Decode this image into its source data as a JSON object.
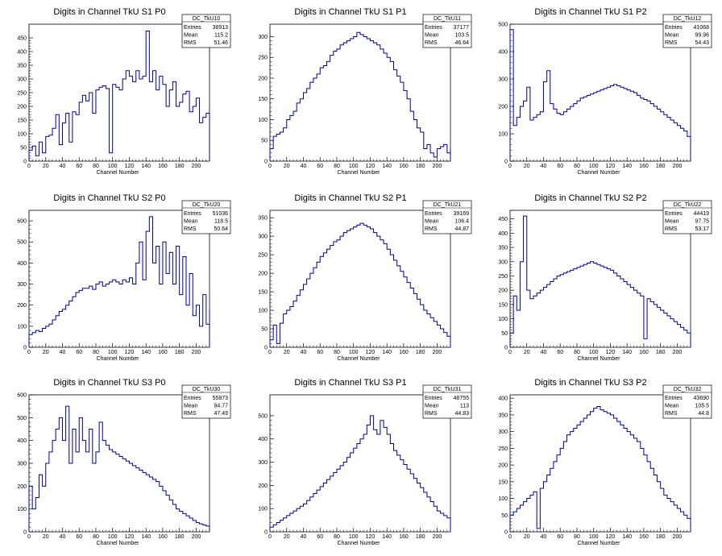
{
  "colors": {
    "line": "#000099",
    "axis": "#000000",
    "background": "#ffffff"
  },
  "chart_data": [
    {
      "type": "histogram",
      "title": "Digits in Channel TkU S1 P0",
      "xlabel": "Channel Number",
      "ylabel": "",
      "xlim": [
        0,
        216
      ],
      "ylim": [
        0,
        500
      ],
      "yticks": [
        0,
        50,
        100,
        150,
        200,
        250,
        300,
        350,
        400,
        450
      ],
      "stats": {
        "name": "DC_TkU10",
        "rows": [
          [
            "Entries",
            "38913"
          ],
          [
            "Mean",
            "115.2"
          ],
          [
            "RMS",
            "51.46"
          ]
        ]
      },
      "bins_step": 4,
      "values": [
        40,
        55,
        20,
        70,
        30,
        90,
        95,
        120,
        170,
        60,
        140,
        175,
        70,
        180,
        170,
        215,
        240,
        220,
        250,
        175,
        260,
        270,
        275,
        265,
        30,
        280,
        270,
        260,
        300,
        330,
        310,
        290,
        330,
        300,
        310,
        475,
        290,
        330,
        260,
        310,
        280,
        200,
        260,
        290,
        200,
        215,
        245,
        255,
        180,
        200,
        230,
        140,
        160,
        175,
        110
      ]
    },
    {
      "type": "histogram",
      "title": "Digits in Channel TkU S1 P1",
      "xlabel": "Channel Number",
      "ylabel": "",
      "xlim": [
        0,
        216
      ],
      "ylim": [
        0,
        330
      ],
      "yticks": [
        0,
        50,
        100,
        150,
        200,
        250,
        300
      ],
      "stats": {
        "name": "DC_TkU11",
        "rows": [
          [
            "Entries",
            "37177"
          ],
          [
            "Mean",
            "103.5"
          ],
          [
            "RMS",
            "46.64"
          ]
        ]
      },
      "bins_step": 4,
      "values": [
        30,
        60,
        65,
        70,
        80,
        100,
        110,
        120,
        140,
        150,
        165,
        175,
        190,
        200,
        210,
        225,
        230,
        240,
        255,
        265,
        270,
        280,
        285,
        290,
        295,
        300,
        310,
        305,
        300,
        295,
        290,
        285,
        280,
        270,
        260,
        250,
        240,
        220,
        205,
        190,
        170,
        150,
        120,
        100,
        80,
        70,
        30,
        40,
        20,
        10,
        30,
        35,
        40,
        20,
        30
      ]
    },
    {
      "type": "histogram",
      "title": "Digits in Channel TkU S1 P2",
      "xlabel": "Channel Number",
      "ylabel": "",
      "xlim": [
        0,
        216
      ],
      "ylim": [
        0,
        500
      ],
      "yticks": [
        0,
        100,
        200,
        300,
        400,
        500
      ],
      "stats": {
        "name": "DC_TkU12",
        "rows": [
          [
            "Entries",
            "41068"
          ],
          [
            "Mean",
            "99.96"
          ],
          [
            "RMS",
            "54.43"
          ]
        ]
      },
      "bins_step": 4,
      "values": [
        480,
        130,
        160,
        200,
        220,
        270,
        150,
        160,
        170,
        180,
        290,
        330,
        210,
        190,
        175,
        170,
        180,
        190,
        200,
        210,
        220,
        230,
        235,
        240,
        245,
        250,
        255,
        260,
        265,
        270,
        275,
        280,
        275,
        270,
        265,
        260,
        255,
        250,
        240,
        230,
        225,
        220,
        210,
        200,
        190,
        180,
        170,
        160,
        150,
        140,
        130,
        120,
        110,
        90,
        60
      ]
    },
    {
      "type": "histogram",
      "title": "Digits in Channel TkU S2 P0",
      "xlabel": "Channel Number",
      "ylabel": "",
      "xlim": [
        0,
        216
      ],
      "ylim": [
        0,
        650
      ],
      "yticks": [
        0,
        100,
        200,
        300,
        400,
        500,
        600
      ],
      "stats": {
        "name": "DC_TkU20",
        "rows": [
          [
            "Entries",
            "51036"
          ],
          [
            "Mean",
            "118.5"
          ],
          [
            "RMS",
            "50.64"
          ]
        ]
      },
      "bins_step": 4,
      "values": [
        60,
        70,
        80,
        75,
        90,
        100,
        110,
        130,
        150,
        170,
        180,
        200,
        220,
        240,
        260,
        270,
        280,
        280,
        290,
        275,
        300,
        310,
        290,
        300,
        310,
        320,
        310,
        300,
        320,
        310,
        330,
        300,
        400,
        500,
        320,
        550,
        620,
        400,
        480,
        300,
        500,
        350,
        450,
        300,
        480,
        250,
        430,
        200,
        350,
        150,
        200,
        100,
        250,
        110,
        180
      ]
    },
    {
      "type": "histogram",
      "title": "Digits in Channel TkU S2 P1",
      "xlabel": "Channel Number",
      "ylabel": "",
      "xlim": [
        0,
        216
      ],
      "ylim": [
        0,
        370
      ],
      "yticks": [
        0,
        50,
        100,
        150,
        200,
        250,
        300,
        350
      ],
      "stats": {
        "name": "DC_TkU21",
        "rows": [
          [
            "Entries",
            "39169"
          ],
          [
            "Mean",
            "106.4"
          ],
          [
            "RMS",
            "44.87"
          ]
        ]
      },
      "bins_step": 4,
      "values": [
        20,
        60,
        10,
        65,
        90,
        100,
        110,
        125,
        140,
        155,
        170,
        185,
        200,
        215,
        230,
        245,
        255,
        265,
        275,
        285,
        290,
        300,
        310,
        315,
        320,
        325,
        330,
        335,
        330,
        325,
        320,
        310,
        300,
        290,
        280,
        265,
        250,
        235,
        220,
        205,
        190,
        175,
        160,
        145,
        130,
        115,
        100,
        90,
        80,
        70,
        60,
        50,
        40,
        30,
        20
      ]
    },
    {
      "type": "histogram",
      "title": "Digits in Channel TkU S2 P2",
      "xlabel": "Channel Number",
      "ylabel": "",
      "xlim": [
        0,
        216
      ],
      "ylim": [
        0,
        480
      ],
      "yticks": [
        0,
        50,
        100,
        150,
        200,
        250,
        300,
        350,
        400,
        450
      ],
      "stats": {
        "name": "DC_TkU22",
        "rows": [
          [
            "Entries",
            "44419"
          ],
          [
            "Mean",
            "97.75"
          ],
          [
            "RMS",
            "53.17"
          ]
        ]
      },
      "bins_step": 4,
      "values": [
        50,
        180,
        130,
        300,
        460,
        200,
        170,
        180,
        190,
        200,
        210,
        220,
        230,
        240,
        250,
        255,
        260,
        265,
        270,
        275,
        280,
        285,
        290,
        295,
        300,
        295,
        290,
        285,
        280,
        275,
        270,
        260,
        250,
        240,
        230,
        220,
        210,
        200,
        190,
        180,
        30,
        170,
        160,
        150,
        140,
        130,
        120,
        110,
        100,
        90,
        80,
        70,
        60,
        50,
        40
      ]
    },
    {
      "type": "histogram",
      "title": "Digits in Channel TkU S3 P0",
      "xlabel": "Channel Number",
      "ylabel": "",
      "xlim": [
        0,
        216
      ],
      "ylim": [
        0,
        600
      ],
      "yticks": [
        0,
        100,
        200,
        300,
        400,
        500,
        600
      ],
      "stats": {
        "name": "DC_TkU30",
        "rows": [
          [
            "Entries",
            "55873"
          ],
          [
            "Mean",
            "94.77"
          ],
          [
            "RMS",
            "47.49"
          ]
        ]
      },
      "bins_step": 4,
      "values": [
        200,
        100,
        150,
        250,
        200,
        300,
        350,
        400,
        450,
        500,
        400,
        550,
        300,
        450,
        350,
        500,
        400,
        350,
        450,
        300,
        350,
        480,
        400,
        380,
        360,
        350,
        340,
        330,
        320,
        310,
        300,
        290,
        280,
        270,
        260,
        250,
        240,
        230,
        220,
        200,
        180,
        160,
        140,
        120,
        100,
        90,
        80,
        70,
        60,
        50,
        40,
        35,
        30,
        25,
        20
      ]
    },
    {
      "type": "histogram",
      "title": "Digits in Channel TkU S3 P1",
      "xlabel": "Channel Number",
      "ylabel": "",
      "xlim": [
        0,
        216
      ],
      "ylim": [
        0,
        590
      ],
      "yticks": [
        0,
        100,
        200,
        300,
        400,
        500
      ],
      "stats": {
        "name": "DC_TkU31",
        "rows": [
          [
            "Entries",
            "48755"
          ],
          [
            "Mean",
            "113"
          ],
          [
            "RMS",
            "44.83"
          ]
        ]
      },
      "bins_step": 4,
      "values": [
        20,
        30,
        40,
        50,
        60,
        70,
        80,
        90,
        100,
        110,
        120,
        135,
        150,
        165,
        180,
        195,
        210,
        225,
        240,
        255,
        270,
        285,
        300,
        320,
        340,
        360,
        380,
        400,
        420,
        460,
        500,
        440,
        420,
        480,
        450,
        420,
        380,
        350,
        330,
        310,
        290,
        270,
        250,
        230,
        210,
        190,
        170,
        150,
        130,
        110,
        90,
        80,
        70,
        60,
        50
      ]
    },
    {
      "type": "histogram",
      "title": "Digits in Channel TkU S3 P2",
      "xlabel": "Channel Number",
      "ylabel": "",
      "xlim": [
        0,
        216
      ],
      "ylim": [
        0,
        410
      ],
      "yticks": [
        0,
        50,
        100,
        150,
        200,
        250,
        300,
        350,
        400
      ],
      "stats": {
        "name": "DC_TkU32",
        "rows": [
          [
            "Entries",
            "43690"
          ],
          [
            "Mean",
            "105.5"
          ],
          [
            "RMS",
            "44.8"
          ]
        ]
      },
      "bins_step": 4,
      "values": [
        50,
        60,
        70,
        80,
        90,
        100,
        110,
        120,
        10,
        130,
        150,
        170,
        190,
        210,
        230,
        250,
        270,
        290,
        300,
        310,
        320,
        330,
        340,
        350,
        360,
        370,
        375,
        365,
        360,
        355,
        350,
        340,
        330,
        320,
        310,
        300,
        290,
        280,
        270,
        250,
        230,
        210,
        190,
        170,
        150,
        130,
        110,
        100,
        90,
        80,
        70,
        60,
        50,
        40,
        30
      ]
    }
  ]
}
